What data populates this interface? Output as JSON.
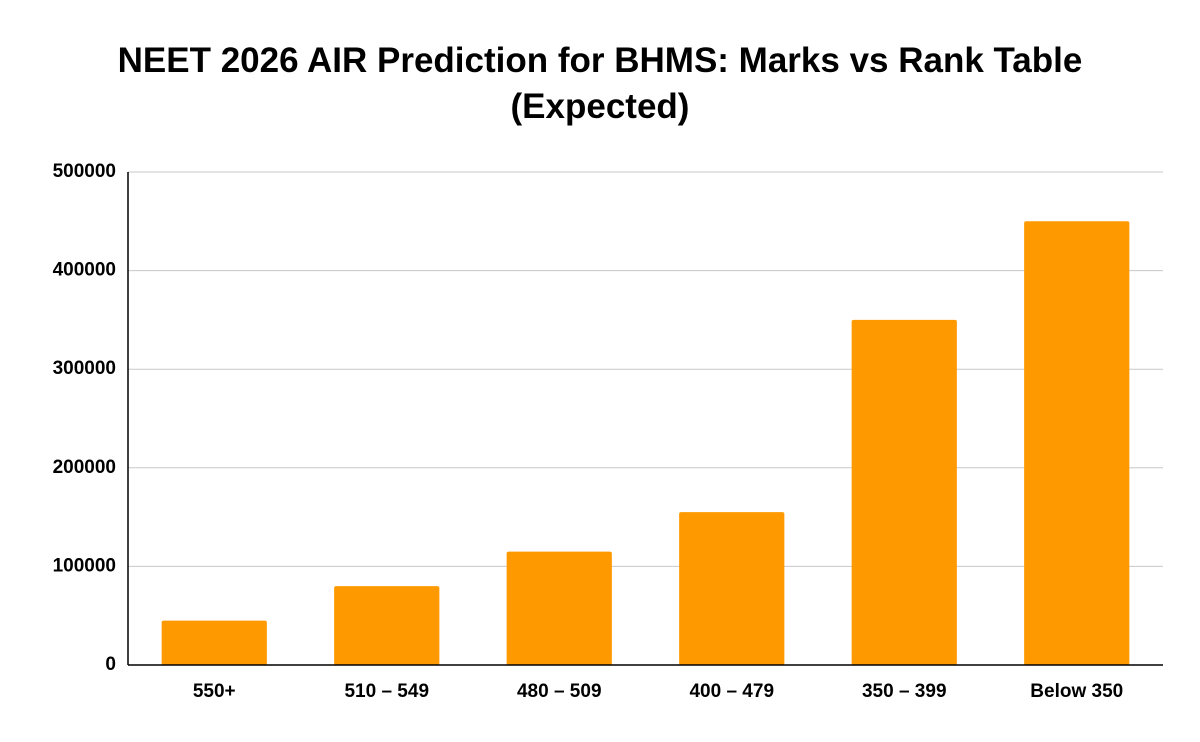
{
  "chart_data": {
    "type": "bar",
    "title": "NEET 2026 AIR Prediction for BHMS: Marks vs Rank Table (Expected)",
    "categories": [
      "550+",
      "510 – 549",
      "480 – 509",
      "400 – 479",
      "350 – 399",
      "Below 350"
    ],
    "values": [
      45000,
      80000,
      115000,
      155000,
      350000,
      450000
    ],
    "color": "#ff9900",
    "ylim": [
      0,
      500000
    ],
    "yticks": [
      0,
      100000,
      200000,
      300000,
      400000,
      500000
    ],
    "grid": true
  }
}
